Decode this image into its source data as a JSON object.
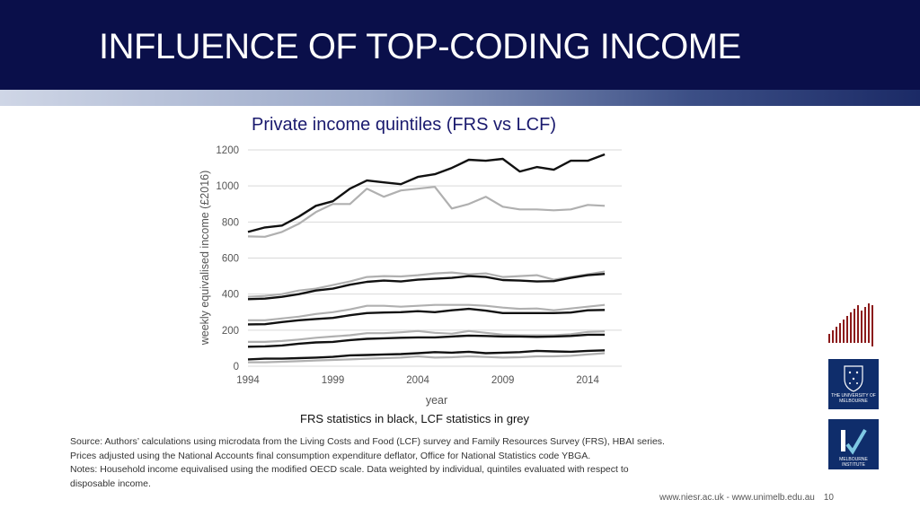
{
  "slide": {
    "title": "INFLUENCE OF TOP-CODING INCOME",
    "footer_links": "www.niesr.ac.uk   -   www.unimelb.edu.au",
    "page_number": "10",
    "chart_note": "FRS statistics in black, LCF statistics in grey",
    "source_lines": [
      "Source:  Authors’ calculations using microdata from the Living Costs and Food (LCF) survey and Family Resources Survey (FRS), HBAI series.",
      "Prices adjusted using the National Accounts final consumption expenditure deflator, Office for National Statistics code YBGA.",
      "Notes: Household income equivalised using the modified OECD scale. Data weighted by individual, quintiles evaluated with respect to",
      "disposable income."
    ],
    "logos": {
      "unimelb_text": "THE UNIVERSITY OF MELBOURNE",
      "mi_text": "MELBOURNE INSTITUTE"
    }
  },
  "chart_data": {
    "type": "line",
    "title": "Private income quintiles (FRS vs LCF)",
    "xlabel": "year",
    "ylabel": "weekly equivalised income (£2016)",
    "xlim": [
      1994,
      2016
    ],
    "ylim": [
      0,
      1200
    ],
    "xticks": [
      1994,
      1999,
      2004,
      2009,
      2014
    ],
    "yticks": [
      0,
      200,
      400,
      600,
      800,
      1000,
      1200
    ],
    "grid": "horizontal",
    "colors": {
      "frs": "#111111",
      "lcf": "#b0b0b0"
    },
    "x": [
      1994,
      1995,
      1996,
      1997,
      1998,
      1999,
      2000,
      2001,
      2002,
      2003,
      2004,
      2005,
      2006,
      2007,
      2008,
      2009,
      2010,
      2011,
      2012,
      2013,
      2014,
      2015
    ],
    "series": [
      {
        "group": "frs",
        "values": [
          745,
          770,
          780,
          830,
          890,
          915,
          985,
          1030,
          1020,
          1010,
          1050,
          1065,
          1100,
          1145,
          1140,
          1150,
          1080,
          1105,
          1090,
          1140,
          1140,
          1175
        ]
      },
      {
        "group": "lcf",
        "values": [
          720,
          718,
          745,
          790,
          855,
          900,
          900,
          985,
          940,
          975,
          985,
          995,
          875,
          900,
          940,
          885,
          870,
          870,
          865,
          870,
          895,
          890
        ]
      },
      {
        "group": "frs",
        "values": [
          372,
          375,
          385,
          400,
          420,
          430,
          452,
          468,
          475,
          470,
          480,
          485,
          490,
          500,
          495,
          478,
          475,
          470,
          472,
          490,
          505,
          512
        ]
      },
      {
        "group": "lcf",
        "values": [
          385,
          390,
          400,
          420,
          430,
          450,
          470,
          495,
          500,
          498,
          505,
          515,
          520,
          510,
          515,
          495,
          500,
          505,
          480,
          495,
          510,
          525
        ]
      },
      {
        "group": "lcf",
        "values": [
          255,
          255,
          265,
          275,
          290,
          300,
          315,
          335,
          335,
          330,
          335,
          340,
          340,
          340,
          335,
          325,
          318,
          320,
          310,
          320,
          330,
          340
        ]
      },
      {
        "group": "frs",
        "values": [
          232,
          233,
          245,
          255,
          262,
          268,
          283,
          295,
          298,
          300,
          305,
          300,
          310,
          318,
          308,
          295,
          295,
          295,
          295,
          298,
          310,
          312
        ]
      },
      {
        "group": "lcf",
        "values": [
          135,
          135,
          140,
          148,
          158,
          165,
          172,
          183,
          183,
          188,
          195,
          185,
          180,
          195,
          185,
          175,
          172,
          172,
          172,
          178,
          190,
          193
        ]
      },
      {
        "group": "frs",
        "values": [
          108,
          110,
          115,
          125,
          132,
          135,
          145,
          152,
          155,
          158,
          160,
          160,
          165,
          170,
          168,
          165,
          165,
          163,
          165,
          168,
          175,
          175
        ]
      },
      {
        "group": "frs",
        "values": [
          38,
          42,
          42,
          45,
          48,
          52,
          60,
          62,
          65,
          67,
          72,
          78,
          75,
          80,
          72,
          75,
          78,
          85,
          82,
          80,
          85,
          88
        ]
      },
      {
        "group": "lcf",
        "values": [
          22,
          22,
          25,
          28,
          32,
          35,
          38,
          42,
          45,
          48,
          55,
          48,
          50,
          55,
          52,
          48,
          50,
          55,
          55,
          58,
          65,
          72
        ]
      }
    ]
  }
}
